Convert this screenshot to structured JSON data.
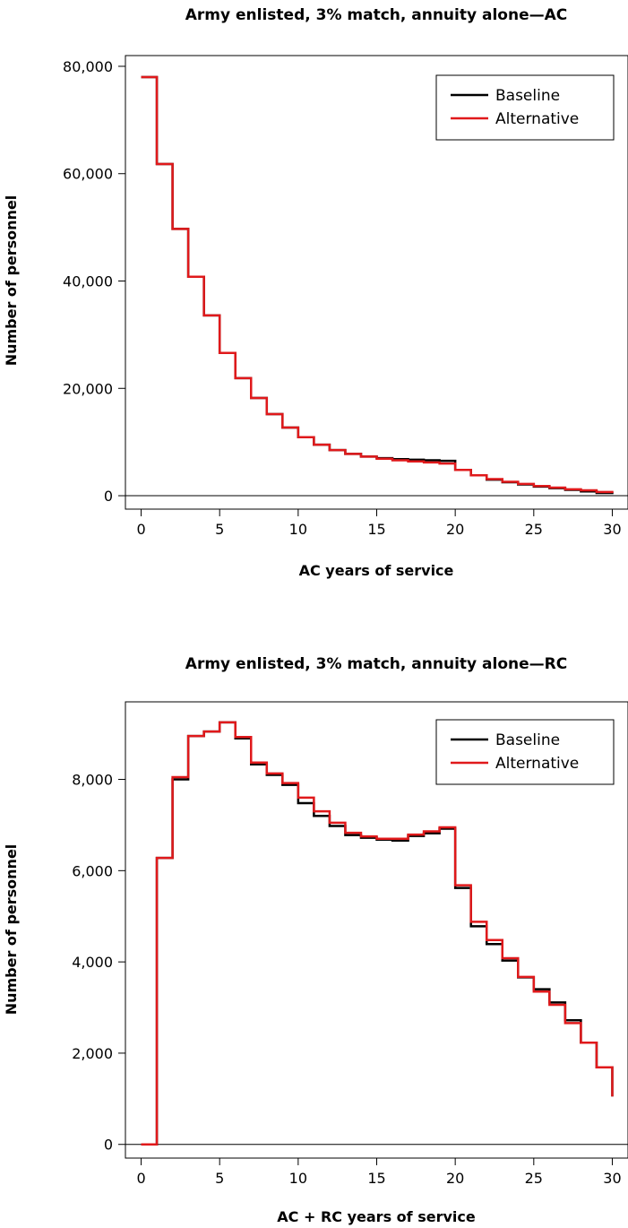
{
  "chart_data": [
    {
      "type": "line",
      "subtype": "step",
      "title": "Army enlisted, 3% match, annuity alone—AC",
      "xlabel": "AC years of service",
      "ylabel": "Number of personnel",
      "xlim": [
        -1,
        31
      ],
      "ylim": [
        -2500,
        82000
      ],
      "x_ticks": [
        0,
        5,
        10,
        15,
        20,
        25,
        30
      ],
      "x_tick_labels": [
        "0",
        "5",
        "10",
        "15",
        "20",
        "25",
        "30"
      ],
      "y_ticks": [
        0,
        20000,
        40000,
        60000,
        80000
      ],
      "y_tick_labels": [
        "0",
        "20,000",
        "40,000",
        "60,000",
        "80,000"
      ],
      "zero_line": true,
      "legend_position": "top-right",
      "x": [
        0,
        1,
        2,
        3,
        4,
        5,
        6,
        7,
        8,
        9,
        10,
        11,
        12,
        13,
        14,
        15,
        16,
        17,
        18,
        19,
        20,
        21,
        22,
        23,
        24,
        25,
        26,
        27,
        28,
        29,
        30
      ],
      "series": [
        {
          "name": "Baseline",
          "color": "#000000",
          "values": [
            78000,
            61800,
            49700,
            40800,
            33600,
            26600,
            21900,
            18200,
            15200,
            12700,
            10900,
            9500,
            8500,
            7800,
            7300,
            7000,
            6800,
            6700,
            6600,
            6500,
            4800,
            3800,
            3000,
            2500,
            2100,
            1700,
            1400,
            1100,
            800,
            500,
            300
          ]
        },
        {
          "name": "Alternative",
          "color": "#e0191b",
          "values": [
            78000,
            61800,
            49700,
            40800,
            33600,
            26600,
            21900,
            18200,
            15200,
            12700,
            10900,
            9500,
            8500,
            7800,
            7300,
            6900,
            6600,
            6400,
            6200,
            6000,
            4800,
            3800,
            3100,
            2600,
            2200,
            1800,
            1500,
            1200,
            1000,
            700,
            500
          ]
        }
      ]
    },
    {
      "type": "line",
      "subtype": "step",
      "title": "Army enlisted, 3% match, annuity alone—RC",
      "xlabel": "AC + RC years of service",
      "ylabel": "Number of personnel",
      "xlim": [
        -1,
        31
      ],
      "ylim": [
        -300,
        9700
      ],
      "x_ticks": [
        0,
        5,
        10,
        15,
        20,
        25,
        30
      ],
      "x_tick_labels": [
        "0",
        "5",
        "10",
        "15",
        "20",
        "25",
        "30"
      ],
      "y_ticks": [
        0,
        2000,
        4000,
        6000,
        8000
      ],
      "y_tick_labels": [
        "0",
        "2,000",
        "4,000",
        "6,000",
        "8,000"
      ],
      "zero_line": true,
      "legend_position": "top-right",
      "x": [
        0,
        1,
        2,
        3,
        4,
        5,
        6,
        7,
        8,
        9,
        10,
        11,
        12,
        13,
        14,
        15,
        16,
        17,
        18,
        19,
        20,
        21,
        22,
        23,
        24,
        25,
        26,
        27,
        28,
        29,
        30
      ],
      "series": [
        {
          "name": "Baseline",
          "color": "#000000",
          "values": [
            0,
            6280,
            8000,
            8950,
            9050,
            9250,
            8900,
            8330,
            8100,
            7880,
            7480,
            7200,
            6980,
            6780,
            6720,
            6680,
            6660,
            6760,
            6820,
            6920,
            5620,
            4780,
            4390,
            4030,
            3660,
            3400,
            3110,
            2720,
            2230,
            1690,
            1050
          ]
        },
        {
          "name": "Alternative",
          "color": "#e0191b",
          "values": [
            0,
            6280,
            8050,
            8950,
            9050,
            9250,
            8930,
            8370,
            8130,
            7920,
            7600,
            7300,
            7050,
            6830,
            6750,
            6700,
            6700,
            6790,
            6860,
            6950,
            5680,
            4880,
            4480,
            4080,
            3670,
            3350,
            3060,
            2660,
            2230,
            1690,
            1050
          ]
        }
      ]
    }
  ]
}
